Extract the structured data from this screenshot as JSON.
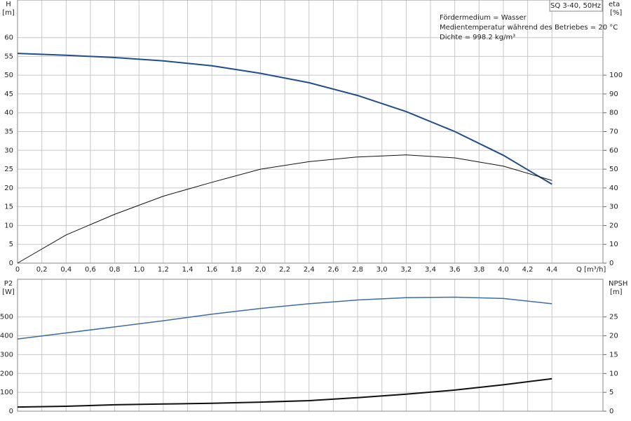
{
  "chart_data": [
    {
      "type": "line",
      "title": "SQ 3-40, 50Hz",
      "annotations": [
        "Fördermedium = Wasser",
        "Medientemperatur während des Betriebes = 20 °C",
        "Dichte = 998.2 kg/m³"
      ],
      "x_label": "Q [m³/h]",
      "y_label": "H",
      "y_unit": "[m]",
      "y2_label": "eta",
      "y2_unit": "[%]",
      "x": [
        0,
        0.4,
        0.8,
        1.2,
        1.6,
        2.0,
        2.4,
        2.8,
        3.2,
        3.6,
        4.0,
        4.4
      ],
      "series": [
        {
          "name": "H",
          "color": "#1f4e8c",
          "width": 2,
          "values": [
            55.8,
            55.3,
            54.7,
            53.8,
            52.5,
            50.5,
            48,
            44.6,
            40.3,
            35,
            28.7,
            21
          ]
        },
        {
          "name": "eta",
          "color": "#111111",
          "width": 1,
          "axis": "y2",
          "values": [
            0,
            15,
            26,
            35.6,
            43,
            50,
            54,
            56.5,
            57.6,
            56,
            51.6,
            44
          ]
        }
      ],
      "xlim": [
        0,
        4.82
      ],
      "xticks": [
        0,
        {
          "value": 0.2,
          "label": "0,2"
        },
        {
          "value": 0.4,
          "label": "0,4"
        },
        {
          "value": 0.6,
          "label": "0,6"
        },
        {
          "value": 0.8,
          "label": "0,8"
        },
        {
          "value": 1.0,
          "label": "1,0"
        },
        {
          "value": 1.2,
          "label": "1,2"
        },
        {
          "value": 1.4,
          "label": "1,4"
        },
        {
          "value": 1.6,
          "label": "1,6"
        },
        {
          "value": 1.8,
          "label": "1,8"
        },
        {
          "value": 2.0,
          "label": "2,0"
        },
        {
          "value": 2.2,
          "label": "2,2"
        },
        {
          "value": 2.4,
          "label": "2,4"
        },
        {
          "value": 2.6,
          "label": "2,6"
        },
        {
          "value": 2.8,
          "label": "2,8"
        },
        {
          "value": 3.0,
          "label": "3,0"
        },
        {
          "value": 3.2,
          "label": "3,2"
        },
        {
          "value": 3.4,
          "label": "3,4"
        },
        {
          "value": 3.6,
          "label": "3,6"
        },
        {
          "value": 3.8,
          "label": "3,8"
        },
        {
          "value": 4.0,
          "label": "4,0"
        },
        {
          "value": 4.2,
          "label": "4,2"
        },
        {
          "value": 4.4,
          "label": "4,4"
        }
      ],
      "ylim": [
        0,
        70
      ],
      "yticks": [
        0,
        5,
        10,
        15,
        20,
        25,
        30,
        35,
        40,
        45,
        50,
        55,
        60
      ],
      "y2lim": [
        0,
        140
      ],
      "y2ticks": [
        0,
        10,
        20,
        30,
        40,
        50,
        60,
        70,
        80,
        90,
        100
      ],
      "grid": true
    },
    {
      "type": "line",
      "y_label": "P2",
      "y_unit": "[W]",
      "y2_label": "NPSH",
      "y2_unit": "[m]",
      "x": [
        0,
        0.4,
        0.8,
        1.2,
        1.6,
        2.0,
        2.4,
        2.8,
        3.2,
        3.6,
        4.0,
        4.4
      ],
      "series": [
        {
          "name": "P2",
          "color": "#3a6ea5",
          "width": 1.5,
          "values": [
            383,
            415,
            447,
            480,
            515,
            545,
            570,
            590,
            602,
            605,
            598,
            570
          ]
        },
        {
          "name": "NPSH",
          "color": "#111111",
          "width": 2,
          "axis": "y2",
          "values": [
            1.1,
            1.3,
            1.7,
            1.9,
            2.1,
            2.4,
            2.8,
            3.6,
            4.5,
            5.6,
            7.0,
            8.6
          ]
        }
      ],
      "xlim": [
        0,
        4.82
      ],
      "xticks": [
        0,
        0.2,
        0.4,
        0.6,
        0.8,
        1.0,
        1.2,
        1.4,
        1.6,
        1.8,
        2.0,
        2.2,
        2.4,
        2.6,
        2.8,
        3.0,
        3.2,
        3.4,
        3.6,
        3.8,
        4.0,
        4.2,
        4.4
      ],
      "ylim": [
        0,
        700
      ],
      "yticks": [
        0,
        100,
        200,
        300,
        400,
        500
      ],
      "y2lim": [
        0,
        35
      ],
      "y2ticks": [
        0,
        5,
        10,
        15,
        20,
        25
      ],
      "grid": true
    }
  ]
}
